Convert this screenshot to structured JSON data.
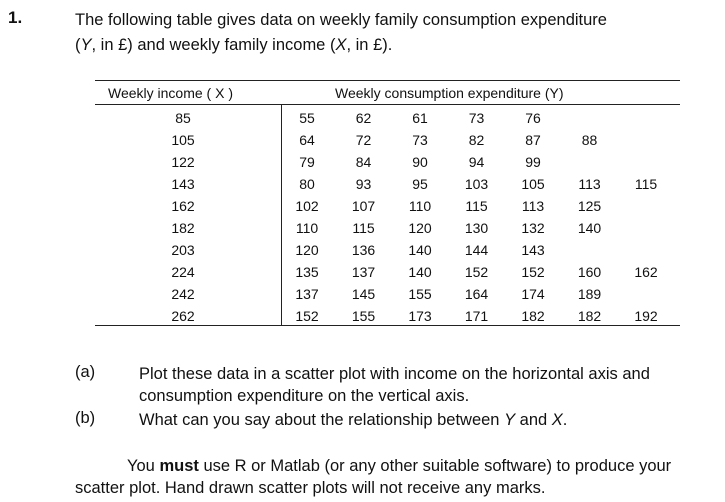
{
  "question": {
    "number": "1.",
    "intro_line1": "The following table gives data on weekly family consumption expenditure",
    "intro_line2_pre": "(",
    "y_symbol": "Y",
    "intro_line2_mid": ", in £) and weekly family income (",
    "x_symbol": "X",
    "intro_line2_post": ", in £)."
  },
  "table": {
    "income_header": "Weekly income ( X )",
    "consumption_header": "Weekly consumption expenditure (Y)",
    "rows": [
      {
        "income": "85",
        "values": [
          "55",
          "62",
          "61",
          "73",
          "76"
        ]
      },
      {
        "income": "105",
        "values": [
          "64",
          "72",
          "73",
          "82",
          "87",
          "88"
        ]
      },
      {
        "income": "122",
        "values": [
          "79",
          "84",
          "90",
          "94",
          "99"
        ]
      },
      {
        "income": "143",
        "values": [
          "80",
          "93",
          "95",
          "103",
          "105",
          "113",
          "115"
        ]
      },
      {
        "income": "162",
        "values": [
          "102",
          "107",
          "110",
          "115",
          "113",
          "125"
        ]
      },
      {
        "income": "182",
        "values": [
          "110",
          "115",
          "120",
          "130",
          "132",
          "140"
        ]
      },
      {
        "income": "203",
        "values": [
          "120",
          "136",
          "140",
          "144",
          "143"
        ]
      },
      {
        "income": "224",
        "values": [
          "135",
          "137",
          "140",
          "152",
          "152",
          "160",
          "162"
        ]
      },
      {
        "income": "242",
        "values": [
          "137",
          "145",
          "155",
          "164",
          "174",
          "189"
        ]
      },
      {
        "income": "262",
        "values": [
          "152",
          "155",
          "173",
          "171",
          "182",
          "182",
          "192"
        ]
      }
    ]
  },
  "parts": {
    "a_label": "(a)",
    "a_line1": "Plot these data in a scatter plot with income on the horizontal axis and",
    "a_line2": "consumption expenditure on the vertical axis.",
    "b_label": "(b)",
    "b_pre": "What can you say about the relationship between ",
    "b_y": "Y",
    "b_mid": " and ",
    "b_x": "X",
    "b_post": "."
  },
  "note": {
    "pre": "You ",
    "must": "must",
    "line1_rest": " use R or Matlab (or any other suitable software) to produce your",
    "line2": "scatter plot. Hand drawn scatter plots will not receive any marks."
  }
}
